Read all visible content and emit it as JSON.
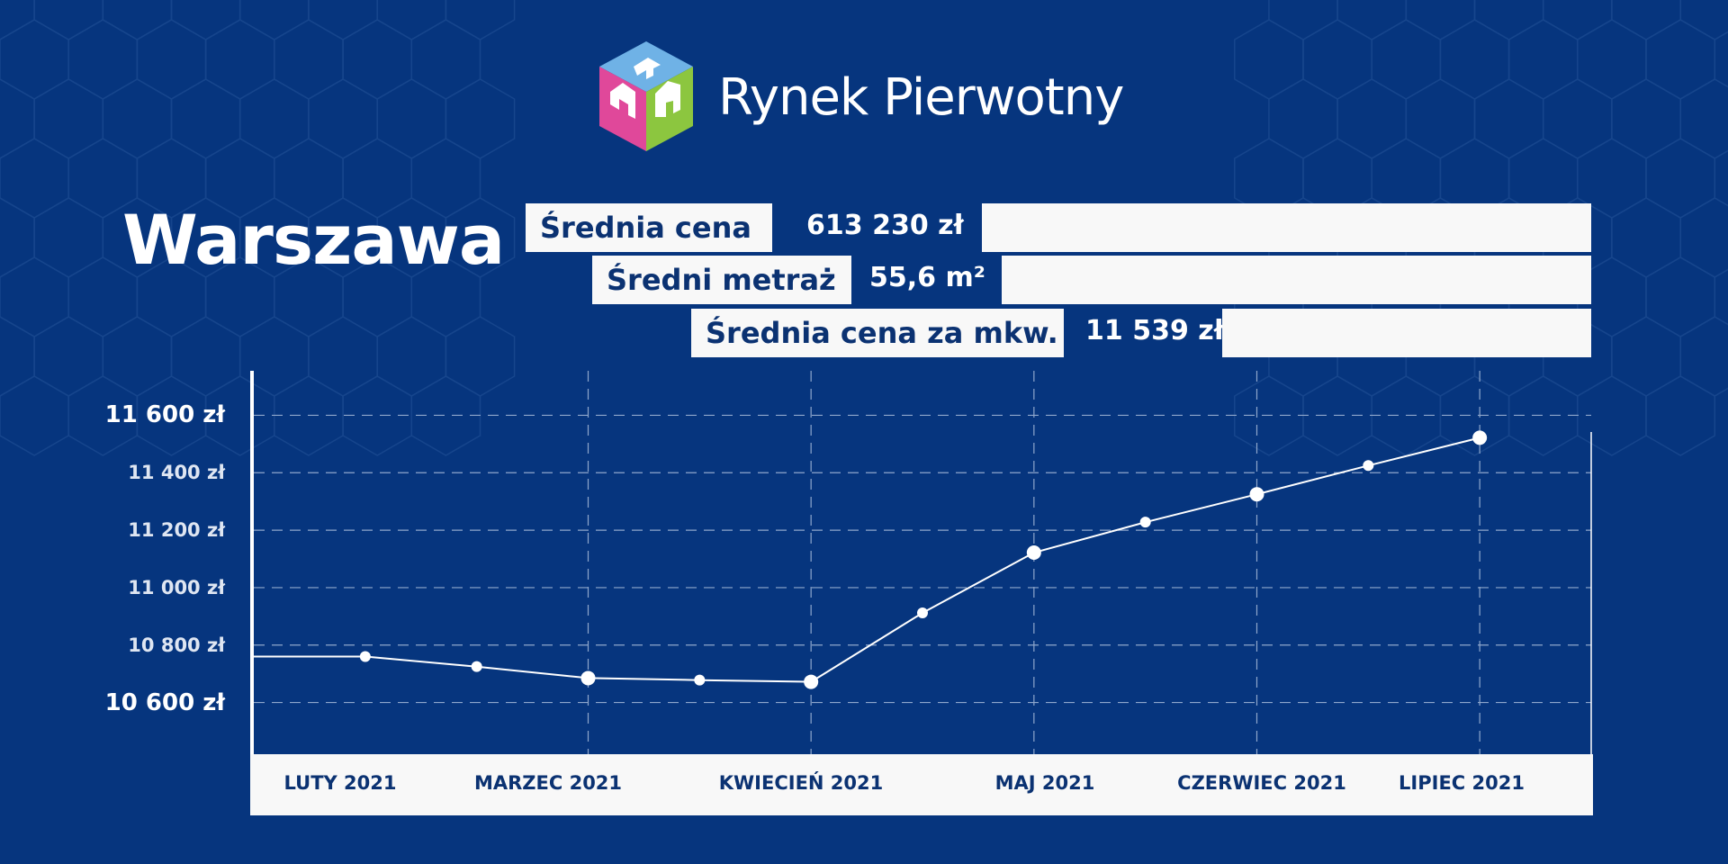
{
  "brand": {
    "name": "Rynek Pierwotny"
  },
  "city": "Warszawa",
  "stats": [
    {
      "label": "Średnia cena",
      "value": "613 230 zł"
    },
    {
      "label": "Średni metraż",
      "value": "55,6 m²"
    },
    {
      "label": "Średnia cena za mkw.",
      "value": "11 539 zł"
    }
  ],
  "colors": {
    "background": "#06357e",
    "panel": "#f8f8f8",
    "text_dark": "#0b3272",
    "line": "#ffffff",
    "logo_top": "#6fb2e6",
    "logo_left": "#e0489a",
    "logo_right": "#8cc63f"
  },
  "icons": [
    "house-cube-logo-icon"
  ],
  "chart_data": {
    "type": "line",
    "title": "",
    "xlabel": "",
    "ylabel": "",
    "categories": [
      "LUTY 2021",
      "MARZEC 2021",
      "KWIECIEŃ 2021",
      "MAJ 2021",
      "CZERWIEC 2021",
      "LIPIEC 2021"
    ],
    "y_ticks": [
      {
        "value": 11600,
        "label": "11 600 zł"
      },
      {
        "value": 11400,
        "label": "11 400 zł"
      },
      {
        "value": 11200,
        "label": "11 200 zł"
      },
      {
        "value": 11000,
        "label": "11 000 zł"
      },
      {
        "value": 10800,
        "label": "10 800 zł"
      },
      {
        "value": 10600,
        "label": "10 600 zł"
      }
    ],
    "ylim": [
      10420,
      11755
    ],
    "grid": true,
    "points": [
      {
        "x": 1.0,
        "y": 10760,
        "major": false
      },
      {
        "x": 1.5,
        "y": 10725,
        "major": false
      },
      {
        "x": 2.0,
        "y": 10685,
        "major": true
      },
      {
        "x": 2.5,
        "y": 10678,
        "major": false
      },
      {
        "x": 3.0,
        "y": 10672,
        "major": true
      },
      {
        "x": 3.5,
        "y": 10912,
        "major": false
      },
      {
        "x": 4.0,
        "y": 11122,
        "major": true
      },
      {
        "x": 4.5,
        "y": 11228,
        "major": false
      },
      {
        "x": 5.0,
        "y": 11325,
        "major": true
      },
      {
        "x": 5.5,
        "y": 11425,
        "major": false
      },
      {
        "x": 6.0,
        "y": 11522,
        "major": true
      }
    ]
  }
}
